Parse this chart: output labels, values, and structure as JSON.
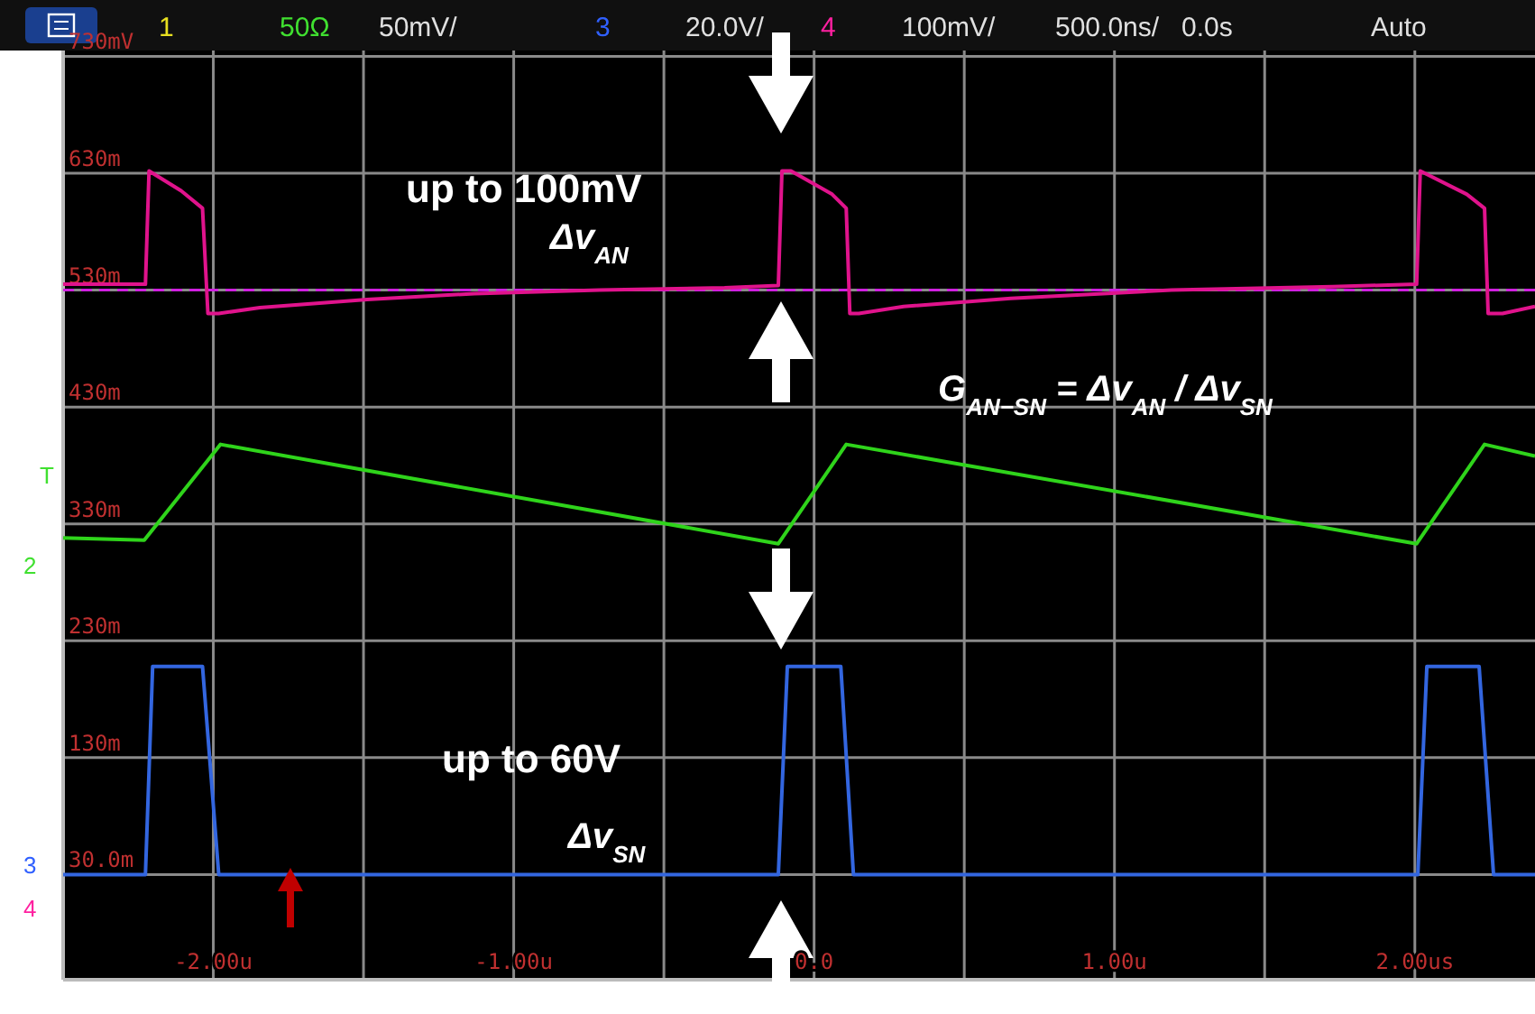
{
  "chart_data": {
    "type": "line",
    "xlim": [
      -2.5,
      2.4
    ],
    "ylim": [
      -60,
      735
    ],
    "xticks": [
      {
        "value": -2.5,
        "label": null
      },
      {
        "value": -2,
        "label": "-2.00u"
      },
      {
        "value": -1.5,
        "label": null
      },
      {
        "value": -1,
        "label": "-1.00u"
      },
      {
        "value": -0.5,
        "label": null
      },
      {
        "value": 0,
        "label": "0.0"
      },
      {
        "value": 0.5,
        "label": null
      },
      {
        "value": 1,
        "label": "1.00u"
      },
      {
        "value": 1.5,
        "label": null
      },
      {
        "value": 2,
        "label": "2.00us"
      }
    ],
    "yticks": [
      {
        "value": 730,
        "label": "730mV"
      },
      {
        "value": 630,
        "label": "630m"
      },
      {
        "value": 530,
        "label": "530m"
      },
      {
        "value": 430,
        "label": "430m"
      },
      {
        "value": 330,
        "label": "330m"
      },
      {
        "value": 230,
        "label": "230m"
      },
      {
        "value": 130,
        "label": "130m"
      },
      {
        "value": 30,
        "label": "30.0m"
      }
    ],
    "grid": true,
    "line_style": "solid",
    "ref_lines": [
      {
        "axis": "y",
        "value": 530,
        "color": "#d020e0",
        "line_style": "dashed"
      }
    ],
    "series": [
      {
        "color": "#e0138c",
        "x": [
          -2.5,
          -2.226,
          -2.214,
          -2.107,
          -2.036,
          -2.018,
          -1.982,
          -1.845,
          -1.488,
          -1.131,
          -0.714,
          -0.298,
          -0.119,
          -0.107,
          -0.077,
          0.06,
          0.107,
          0.119,
          0.149,
          0.298,
          0.655,
          1.19,
          1.726,
          2.006,
          2.018,
          2.173,
          2.232,
          2.244,
          2.292,
          2.4
        ],
        "values": [
          535,
          535,
          632,
          615,
          600,
          510,
          510,
          515,
          522,
          527,
          530,
          532,
          534,
          632,
          632,
          612,
          600,
          510,
          510,
          516,
          523,
          530,
          533,
          535,
          632,
          612,
          600,
          510,
          510,
          516
        ]
      },
      {
        "color": "#2fd41b",
        "x": [
          -2.5,
          -2.23,
          -1.976,
          -0.119,
          0.107,
          2.006,
          2.232,
          2.4
        ],
        "values": [
          318,
          316,
          398,
          313,
          398,
          313,
          398,
          388
        ]
      },
      {
        "color": "#3366e0",
        "x": [
          -2.5,
          -2.226,
          -2.202,
          -2.036,
          -1.982,
          -0.119,
          -0.089,
          0.089,
          0.131,
          2.01,
          2.04,
          2.214,
          2.262,
          2.4
        ],
        "values": [
          30,
          30,
          208,
          208,
          30,
          30,
          208,
          208,
          30,
          30,
          208,
          208,
          30,
          30
        ]
      }
    ],
    "annotations": [
      "1",
      "50Ω",
      "50mV/",
      "3",
      "20.0V/",
      "4",
      "100mV/",
      "500.0ns/",
      "0.0s",
      "Auto",
      "up to 100mV",
      "Δv$_{AN}$",
      "G$_{AN−SN}$ = Δv$_{AN}$ / Δv$_{SN}$",
      "up to 60V",
      "Δv$_{SN}$",
      "T",
      "2",
      "3",
      "4"
    ]
  }
}
